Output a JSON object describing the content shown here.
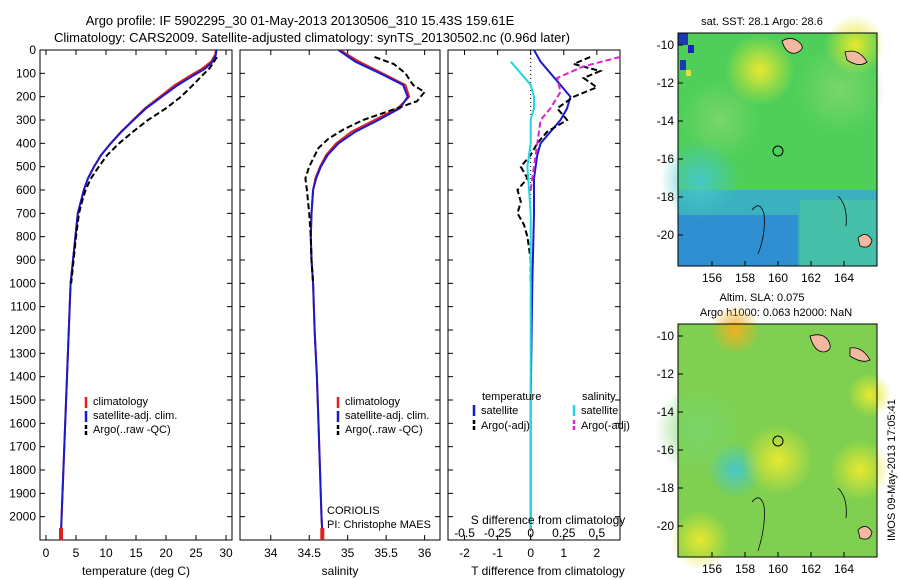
{
  "header": {
    "line1": "Argo profile: IF 5902295_30 01-May-2013 20130506_310 15.43S 159.61E",
    "line2": "Climatology: CARS2009. Satellite-adjusted climatology: synTS_20130502.nc (0.96d later)"
  },
  "side_label": "IMOS 09-May-2013 17:05:41",
  "colors": {
    "climatology": "#e02020",
    "satellite": "#1a1acc",
    "argo": "#000000",
    "sal_sat": "#20d8e0",
    "sal_argo": "#e020d0"
  },
  "chart_data": [
    {
      "type": "line",
      "xlabel": "temperature (deg C)",
      "ylabel": "",
      "xlim": [
        -1,
        31
      ],
      "ylim": [
        2100,
        0
      ],
      "xticks": [
        0,
        5,
        10,
        15,
        20,
        25,
        30
      ],
      "yticks": [
        0,
        100,
        200,
        300,
        400,
        500,
        600,
        700,
        800,
        900,
        1000,
        1100,
        1200,
        1300,
        1400,
        1500,
        1600,
        1700,
        1800,
        1900,
        2000
      ],
      "legend": [
        "climatology",
        "satellite-adj. clim.",
        "Argo(..raw -QC)"
      ],
      "series": [
        {
          "name": "climatology",
          "color": "#e02020",
          "dash": "",
          "points": [
            [
              28.3,
              0
            ],
            [
              28.2,
              20
            ],
            [
              27.5,
              50
            ],
            [
              26,
              80
            ],
            [
              24,
              110
            ],
            [
              21.5,
              150
            ],
            [
              19,
              200
            ],
            [
              16.5,
              250
            ],
            [
              14.5,
              300
            ],
            [
              12.5,
              350
            ],
            [
              10.8,
              400
            ],
            [
              9.2,
              450
            ],
            [
              8,
              500
            ],
            [
              7,
              550
            ],
            [
              6.3,
              600
            ],
            [
              5.8,
              650
            ],
            [
              5.3,
              700
            ],
            [
              4.9,
              800
            ],
            [
              4.5,
              900
            ],
            [
              4.1,
              1000
            ],
            [
              3.8,
              1200
            ],
            [
              3.5,
              1400
            ],
            [
              3.2,
              1600
            ],
            [
              2.9,
              1800
            ],
            [
              2.6,
              2000
            ],
            [
              2.5,
              2070
            ]
          ]
        },
        {
          "name": "satellite-adj. clim.",
          "color": "#1a1acc",
          "dash": "",
          "points": [
            [
              28.4,
              0
            ],
            [
              28.3,
              20
            ],
            [
              27.8,
              50
            ],
            [
              26.5,
              80
            ],
            [
              24.5,
              110
            ],
            [
              22,
              150
            ],
            [
              19.3,
              200
            ],
            [
              16.7,
              250
            ],
            [
              14.6,
              300
            ],
            [
              12.6,
              350
            ],
            [
              10.8,
              400
            ],
            [
              9.2,
              450
            ],
            [
              8,
              500
            ],
            [
              7,
              550
            ],
            [
              6.3,
              600
            ],
            [
              5.8,
              650
            ],
            [
              5.3,
              700
            ],
            [
              4.9,
              800
            ],
            [
              4.5,
              900
            ],
            [
              4.1,
              1000
            ],
            [
              3.8,
              1200
            ],
            [
              3.5,
              1400
            ],
            [
              3.2,
              1600
            ],
            [
              2.9,
              1800
            ],
            [
              2.6,
              2000
            ],
            [
              2.5,
              2070
            ]
          ]
        },
        {
          "name": "Argo(..raw -QC)",
          "color": "#000000",
          "dash": "6,3",
          "points": [
            [
              28.5,
              30
            ],
            [
              28,
              50
            ],
            [
              27.2,
              80
            ],
            [
              26,
              110
            ],
            [
              24.5,
              150
            ],
            [
              22.5,
              200
            ],
            [
              20,
              250
            ],
            [
              17,
              300
            ],
            [
              14.5,
              350
            ],
            [
              12.2,
              400
            ],
            [
              10.2,
              450
            ],
            [
              8.8,
              500
            ],
            [
              7.5,
              550
            ],
            [
              6.6,
              600
            ],
            [
              6,
              650
            ],
            [
              5.5,
              700
            ],
            [
              5,
              800
            ],
            [
              4.6,
              900
            ],
            [
              4.2,
              1000
            ]
          ]
        }
      ]
    },
    {
      "type": "line",
      "xlabel": "salinity",
      "ylabel": "",
      "xlim": [
        33.6,
        36.2
      ],
      "ylim": [
        2100,
        0
      ],
      "xticks": [
        34,
        34.5,
        35,
        35.5,
        36
      ],
      "yticks": [],
      "legend": [
        "climatology",
        "satellite-adj. clim.",
        "Argo(..raw -QC)"
      ],
      "annotations": [
        "CORIOLIS",
        "PI: Christophe MAES"
      ],
      "series": [
        {
          "name": "climatology",
          "color": "#e02020",
          "dash": "",
          "points": [
            [
              34.9,
              0
            ],
            [
              35.15,
              50
            ],
            [
              35.45,
              100
            ],
            [
              35.75,
              150
            ],
            [
              35.8,
              200
            ],
            [
              35.65,
              250
            ],
            [
              35.35,
              300
            ],
            [
              35.05,
              350
            ],
            [
              34.85,
              400
            ],
            [
              34.72,
              450
            ],
            [
              34.64,
              500
            ],
            [
              34.58,
              550
            ],
            [
              34.55,
              600
            ],
            [
              34.53,
              700
            ],
            [
              34.52,
              800
            ],
            [
              34.53,
              900
            ],
            [
              34.55,
              1000
            ],
            [
              34.57,
              1200
            ],
            [
              34.6,
              1400
            ],
            [
              34.62,
              1600
            ],
            [
              34.64,
              1800
            ],
            [
              34.66,
              2000
            ],
            [
              34.67,
              2070
            ]
          ]
        },
        {
          "name": "satellite-adj. clim.",
          "color": "#1a1acc",
          "dash": "",
          "points": [
            [
              34.88,
              0
            ],
            [
              35.1,
              50
            ],
            [
              35.42,
              100
            ],
            [
              35.72,
              150
            ],
            [
              35.78,
              200
            ],
            [
              35.68,
              250
            ],
            [
              35.4,
              300
            ],
            [
              35.1,
              350
            ],
            [
              34.88,
              400
            ],
            [
              34.74,
              450
            ],
            [
              34.65,
              500
            ],
            [
              34.59,
              550
            ],
            [
              34.55,
              600
            ],
            [
              34.53,
              700
            ],
            [
              34.52,
              800
            ],
            [
              34.53,
              900
            ],
            [
              34.55,
              1000
            ],
            [
              34.57,
              1200
            ],
            [
              34.6,
              1400
            ],
            [
              34.62,
              1600
            ],
            [
              34.64,
              1800
            ],
            [
              34.66,
              2000
            ],
            [
              34.67,
              2070
            ]
          ]
        },
        {
          "name": "Argo(..raw -QC)",
          "color": "#000000",
          "dash": "6,3",
          "points": [
            [
              35.35,
              30
            ],
            [
              35.6,
              60
            ],
            [
              35.75,
              100
            ],
            [
              35.85,
              150
            ],
            [
              36.0,
              180
            ],
            [
              35.9,
              220
            ],
            [
              35.55,
              260
            ],
            [
              35.2,
              300
            ],
            [
              34.95,
              340
            ],
            [
              34.75,
              380
            ],
            [
              34.62,
              420
            ],
            [
              34.56,
              460
            ],
            [
              34.5,
              500
            ],
            [
              34.45,
              550
            ],
            [
              34.47,
              600
            ],
            [
              34.5,
              700
            ],
            [
              34.52,
              800
            ],
            [
              34.53,
              900
            ],
            [
              34.55,
              1000
            ]
          ]
        }
      ]
    },
    {
      "type": "line",
      "xlabel": "T difference from climatology",
      "x2label": "S difference from climatology",
      "xlim": [
        -2.5,
        2.7
      ],
      "ylim": [
        2100,
        0
      ],
      "xticks": [
        -2,
        -1,
        0,
        1,
        2
      ],
      "x2ticks": [
        "-0.5",
        "-0.25",
        "0",
        "0.25",
        "0.5"
      ],
      "yticks": [],
      "legend_titles": [
        "temperature",
        "salinity"
      ],
      "legend": [
        "satellite",
        "Argo(-adj)",
        "satellite",
        "Argo(-adj)"
      ],
      "series": [
        {
          "name": "satellite",
          "color": "#1a1acc",
          "dash": "",
          "points": [
            [
              0.1,
              0
            ],
            [
              0.3,
              50
            ],
            [
              0.6,
              100
            ],
            [
              0.9,
              150
            ],
            [
              1.2,
              200
            ],
            [
              1.1,
              250
            ],
            [
              0.9,
              300
            ],
            [
              0.6,
              350
            ],
            [
              0.3,
              400
            ],
            [
              0.2,
              450
            ],
            [
              0.1,
              550
            ],
            [
              0.1,
              700
            ],
            [
              0.05,
              1000
            ],
            [
              0,
              1500
            ],
            [
              0,
              2050
            ]
          ]
        },
        {
          "name": "Argo(-adj)",
          "color": "#000000",
          "dash": "6,3",
          "points": [
            [
              1.8,
              30
            ],
            [
              1.3,
              60
            ],
            [
              2.1,
              90
            ],
            [
              1.6,
              120
            ],
            [
              2.0,
              160
            ],
            [
              1.3,
              200
            ],
            [
              0.8,
              250
            ],
            [
              1.1,
              300
            ],
            [
              0.5,
              350
            ],
            [
              0.2,
              400
            ],
            [
              0.0,
              450
            ],
            [
              -0.3,
              500
            ],
            [
              -0.1,
              550
            ],
            [
              -0.4,
              600
            ],
            [
              -0.3,
              650
            ],
            [
              -0.4,
              700
            ],
            [
              -0.2,
              750
            ],
            [
              -0.1,
              800
            ],
            [
              0,
              900
            ],
            [
              0,
              1000
            ]
          ]
        },
        {
          "name": "satellite",
          "color": "#20d8e0",
          "dash": "",
          "points": [
            [
              -0.6,
              50
            ],
            [
              -0.3,
              100
            ],
            [
              0.0,
              150
            ],
            [
              0.1,
              200
            ],
            [
              0.1,
              250
            ],
            [
              0.0,
              300
            ],
            [
              0.0,
              400
            ],
            [
              -0.1,
              500
            ],
            [
              0.0,
              700
            ],
            [
              0,
              1000
            ],
            [
              0,
              1500
            ],
            [
              0,
              2050
            ]
          ]
        },
        {
          "name": "Argo(-adj)",
          "color": "#e020d0",
          "dash": "6,3",
          "points": [
            [
              2.7,
              30
            ],
            [
              1.6,
              70
            ],
            [
              0.8,
              120
            ],
            [
              0.9,
              180
            ],
            [
              0.6,
              250
            ],
            [
              0.3,
              300
            ],
            [
              0.2,
              400
            ],
            [
              0.1,
              500
            ],
            [
              0.0,
              600
            ]
          ]
        }
      ]
    }
  ],
  "maps": [
    {
      "title": "sat. SST: 28.1  Argo: 28.6",
      "xticks": [
        "156",
        "158",
        "160",
        "162",
        "164"
      ],
      "yticks": [
        "-10",
        "-12",
        "-14",
        "-16",
        "-18",
        "-20"
      ],
      "marker_label": "Argo position 15.43S 159.61E"
    },
    {
      "title": "Altim. SLA: 0.075",
      "subtitle": "Argo h1000: 0.063 h2000: NaN",
      "xticks": [
        "156",
        "158",
        "160",
        "162",
        "164"
      ],
      "yticks": [
        "-10",
        "-12",
        "-14",
        "-16",
        "-18",
        "-20"
      ]
    }
  ]
}
